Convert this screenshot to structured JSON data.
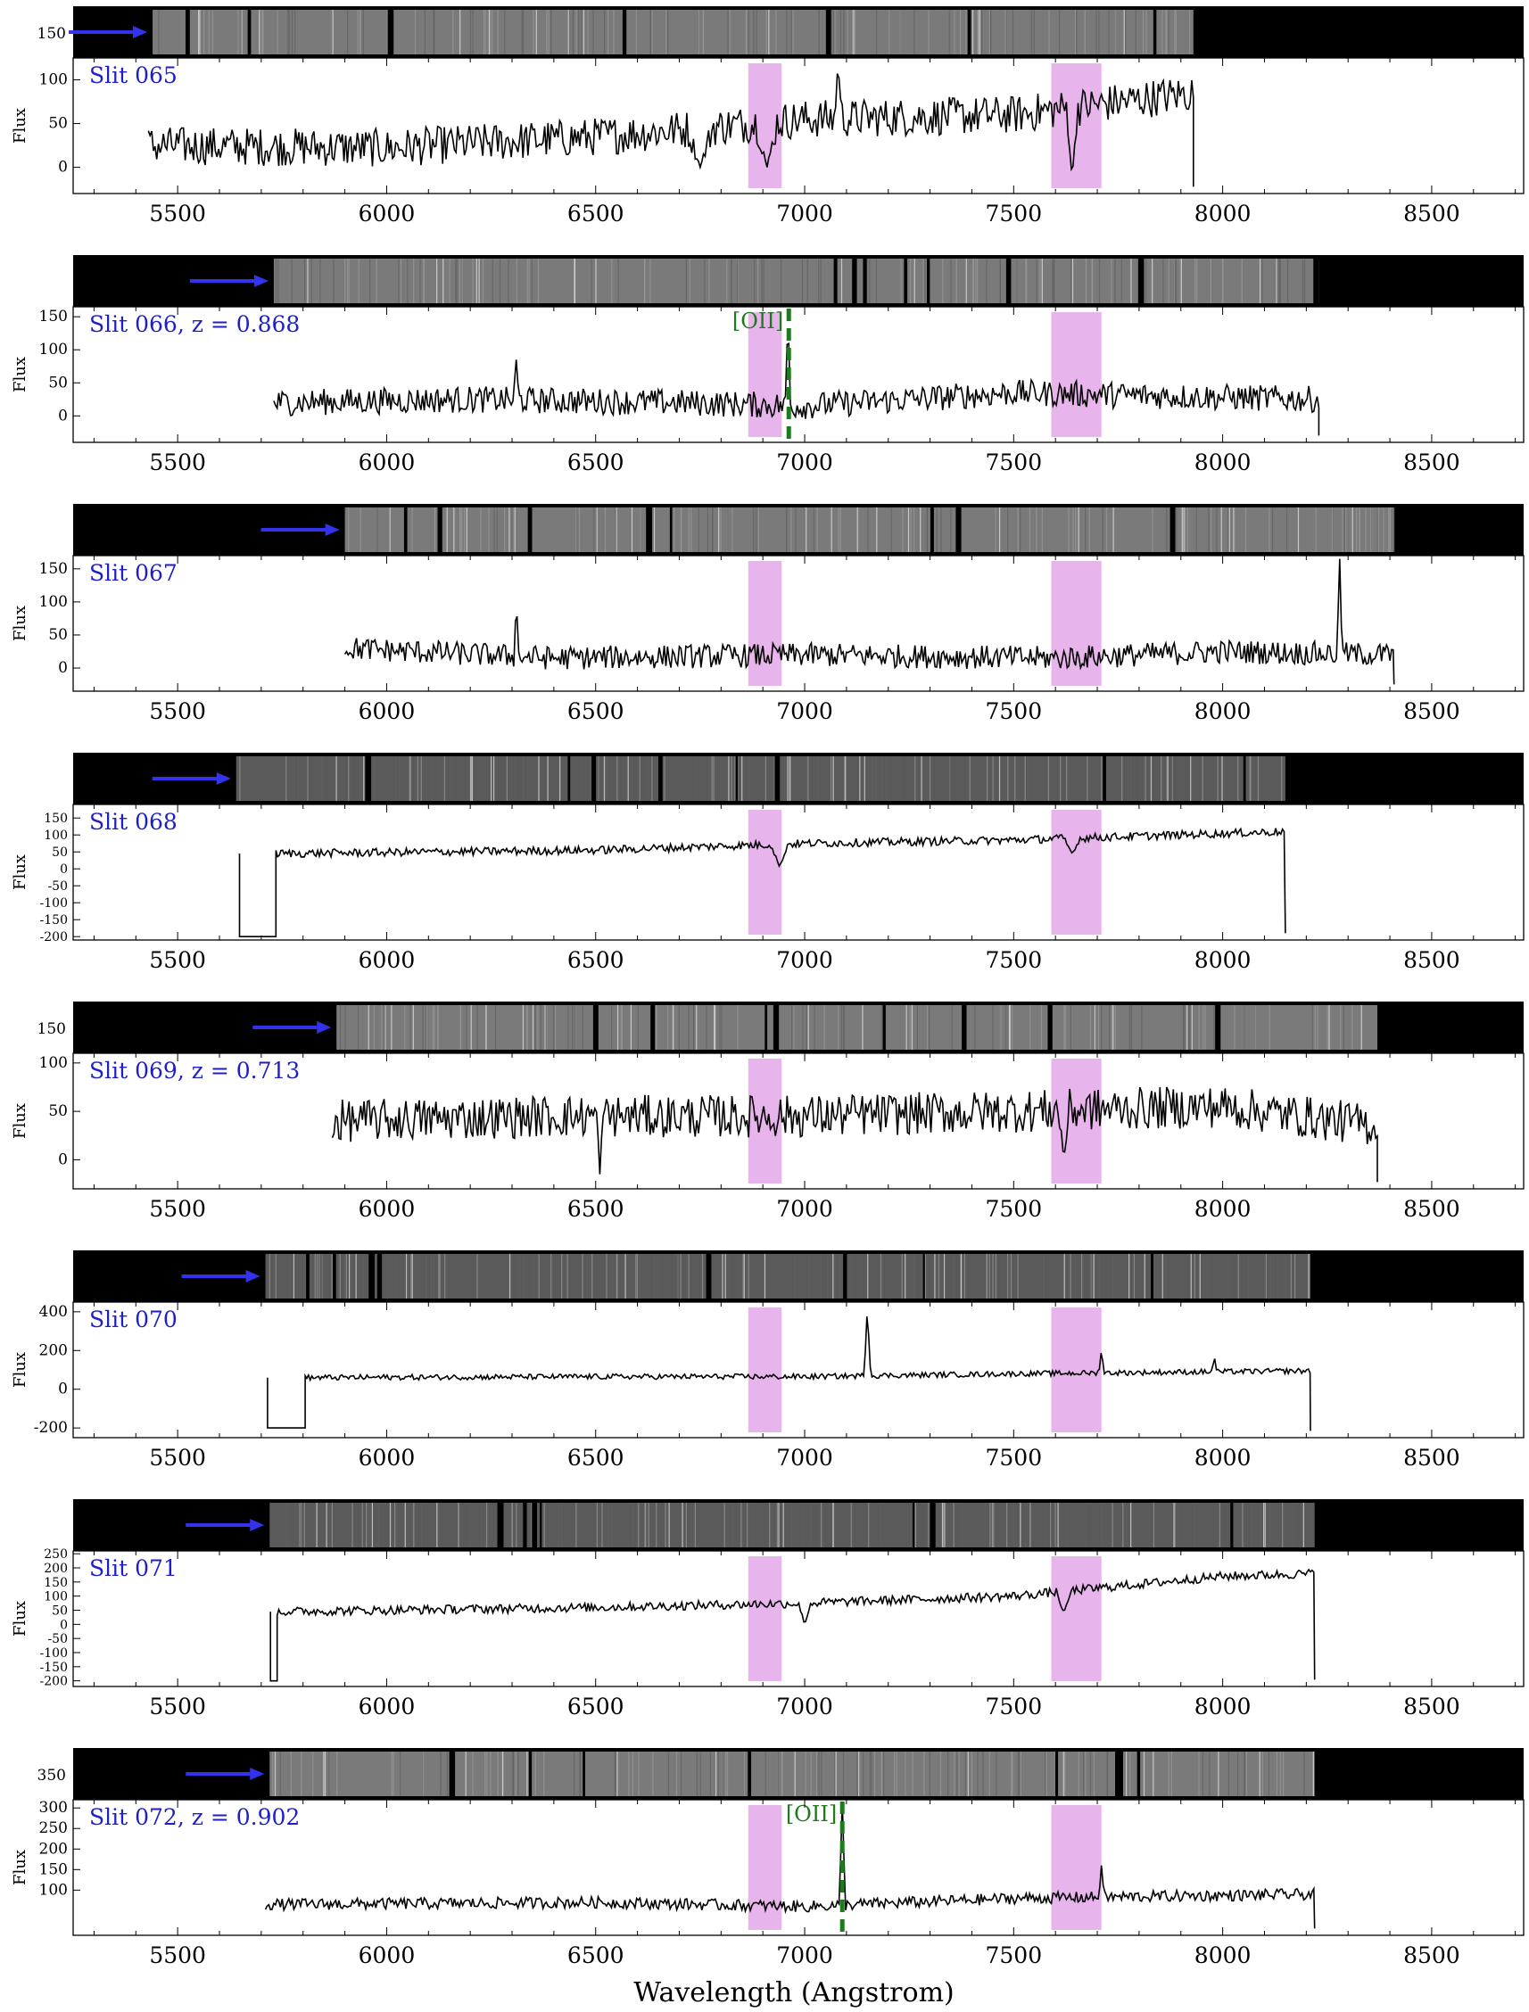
{
  "chart_data": {
    "type": "line",
    "xlabel": "Wavelength (Angstrom)",
    "ylabel": "Flux",
    "xlim": [
      5250,
      8720
    ],
    "xticks": [
      5500,
      6000,
      6500,
      7000,
      7500,
      8000,
      8500
    ],
    "telluric_bands": [
      [
        6865,
        6945
      ],
      [
        7590,
        7710
      ]
    ],
    "colors": {
      "spectrum": "#000000",
      "telluric": "#e8b4ec",
      "arrow": "#3333ee",
      "slit_label": "#1f1fc8",
      "line_marker": "#1e7a1e"
    },
    "panels": [
      {
        "slit_label": "Slit 065",
        "ylim": [
          -30,
          125
        ],
        "yticks": [
          0,
          50,
          100
        ],
        "image_yticks": [
          "150"
        ],
        "image_span": [
          5440,
          7930
        ],
        "x_range": [
          5430,
          7930
        ],
        "baseline": [
          [
            5430,
            25
          ],
          [
            6000,
            22
          ],
          [
            6500,
            35
          ],
          [
            7000,
            55
          ],
          [
            7500,
            60
          ],
          [
            7930,
            85
          ]
        ],
        "noise": 22,
        "features": [
          {
            "x": 7080,
            "y": 122,
            "width": 8
          },
          {
            "x": 7640,
            "y": -15,
            "width": 12
          },
          {
            "x": 6750,
            "y": 0,
            "width": 30
          },
          {
            "x": 6910,
            "y": 0,
            "width": 25
          }
        ]
      },
      {
        "slit_label": "Slit 066, z = 0.868",
        "ylim": [
          -40,
          165
        ],
        "yticks": [
          0,
          50,
          100,
          150
        ],
        "image_yticks": [],
        "image_span": [
          5730,
          8230
        ],
        "x_range": [
          5730,
          8230
        ],
        "baseline": [
          [
            5730,
            20
          ],
          [
            6200,
            25
          ],
          [
            6700,
            20
          ],
          [
            7000,
            15
          ],
          [
            7500,
            35
          ],
          [
            8230,
            25
          ]
        ],
        "noise": 20,
        "features": [
          {
            "x": 6960,
            "y": 155,
            "width": 6
          },
          {
            "x": 6310,
            "y": 85,
            "width": 6
          }
        ],
        "line_marker": {
          "label": "[OII]",
          "x": 6962
        }
      },
      {
        "slit_label": "Slit 067",
        "ylim": [
          -35,
          170
        ],
        "yticks": [
          0,
          50,
          100,
          150
        ],
        "image_yticks": [],
        "image_span": [
          5900,
          8410
        ],
        "x_range": [
          5900,
          8410
        ],
        "baseline": [
          [
            5900,
            30
          ],
          [
            6400,
            15
          ],
          [
            7000,
            20
          ],
          [
            7600,
            15
          ],
          [
            8000,
            25
          ],
          [
            8410,
            20
          ]
        ],
        "noise": 18,
        "features": [
          {
            "x": 8280,
            "y": 165,
            "width": 6
          },
          {
            "x": 6310,
            "y": 105,
            "width": 6
          }
        ]
      },
      {
        "slit_label": "Slit 068",
        "ylim": [
          -210,
          190
        ],
        "yticks": [
          -200,
          -150,
          -100,
          -50,
          0,
          50,
          100,
          150
        ],
        "image_yticks": [],
        "image_span": [
          5640,
          8150
        ],
        "x_range": [
          5640,
          8150
        ],
        "baseline": [
          [
            5740,
            45
          ],
          [
            6500,
            55
          ],
          [
            7000,
            75
          ],
          [
            7500,
            85
          ],
          [
            8150,
            110
          ]
        ],
        "noise": 12,
        "features": [
          {
            "x": 6940,
            "y": 5,
            "width": 20
          },
          {
            "x": 7640,
            "y": 45,
            "width": 20
          }
        ],
        "dip": {
          "x1": 5648,
          "x2": 5735,
          "y": -200
        }
      },
      {
        "slit_label": "Slit 069, z = 0.713",
        "ylim": [
          -30,
          110
        ],
        "yticks": [
          0,
          50,
          100
        ],
        "image_yticks": [
          "150"
        ],
        "image_span": [
          5880,
          8370
        ],
        "x_range": [
          5870,
          8370
        ],
        "baseline": [
          [
            5870,
            40
          ],
          [
            6400,
            45
          ],
          [
            7000,
            45
          ],
          [
            7500,
            50
          ],
          [
            8000,
            55
          ],
          [
            8370,
            35
          ]
        ],
        "noise": 22,
        "features": [
          {
            "x": 6510,
            "y": -15,
            "width": 8
          },
          {
            "x": 7620,
            "y": 0,
            "width": 12
          }
        ]
      },
      {
        "slit_label": "Slit 070",
        "ylim": [
          -250,
          450
        ],
        "yticks": [
          -200,
          0,
          200,
          400
        ],
        "image_yticks": [],
        "image_span": [
          5710,
          8210
        ],
        "x_range": [
          5710,
          8210
        ],
        "baseline": [
          [
            5800,
            60
          ],
          [
            6500,
            65
          ],
          [
            7000,
            65
          ],
          [
            7500,
            80
          ],
          [
            8210,
            95
          ]
        ],
        "noise": 14,
        "features": [
          {
            "x": 7150,
            "y": 420,
            "width": 8
          },
          {
            "x": 7710,
            "y": 210,
            "width": 6
          },
          {
            "x": 7980,
            "y": 170,
            "width": 6
          }
        ],
        "dip": {
          "x1": 5715,
          "x2": 5805,
          "y": -200
        }
      },
      {
        "slit_label": "Slit 071",
        "ylim": [
          -220,
          260
        ],
        "yticks": [
          -200,
          -150,
          -100,
          -50,
          0,
          50,
          100,
          150,
          200,
          250
        ],
        "image_yticks": [],
        "image_span": [
          5720,
          8220
        ],
        "x_range": [
          5720,
          8220
        ],
        "baseline": [
          [
            5740,
            45
          ],
          [
            6500,
            60
          ],
          [
            7000,
            75
          ],
          [
            7500,
            100
          ],
          [
            8000,
            170
          ],
          [
            8220,
            180
          ]
        ],
        "noise": 16,
        "features": [
          {
            "x": 7000,
            "y": 0,
            "width": 15
          },
          {
            "x": 7620,
            "y": 40,
            "width": 18
          }
        ],
        "dip": {
          "x1": 5722,
          "x2": 5738,
          "y": -200
        }
      },
      {
        "slit_label": "Slit 072, z = 0.902",
        "ylim": [
          -10,
          320
        ],
        "yticks": [
          100,
          150,
          200,
          250,
          300
        ],
        "image_yticks": [
          "350"
        ],
        "image_span": [
          5720,
          8220
        ],
        "x_range": [
          5710,
          8220
        ],
        "baseline": [
          [
            5710,
            65
          ],
          [
            6500,
            70
          ],
          [
            7000,
            60
          ],
          [
            7500,
            80
          ],
          [
            8220,
            90
          ]
        ],
        "noise": 14,
        "features": [
          {
            "x": 7090,
            "y": 315,
            "width": 7
          },
          {
            "x": 7710,
            "y": 160,
            "width": 6
          }
        ],
        "line_marker": {
          "label": "[OII]",
          "x": 7090
        }
      }
    ]
  }
}
